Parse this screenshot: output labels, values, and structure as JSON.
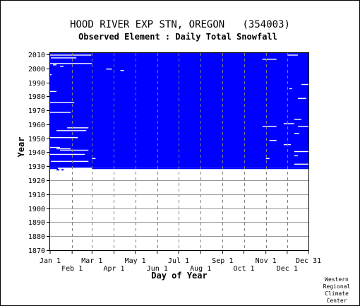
{
  "chart_data": {
    "type": "heatmap",
    "title": "HOOD RIVER EXP STN, OREGON   (354003)",
    "subtitle": "Observed Element : Daily Total Snowfall",
    "xlabel": "Day of Year",
    "ylabel": "Year",
    "footer": [
      "Western",
      "Regional",
      "Climate",
      "Center"
    ],
    "x_ticks_top": [
      "Jan 1",
      "Mar 1",
      "May 1",
      "Jul 1",
      "Sep 1",
      "Nov 1",
      "Dec 31"
    ],
    "x_ticks_bottom": [
      "Feb 1",
      "Apr 1",
      "Jun 1",
      "Aug 1",
      "Oct 1",
      "Dec 1"
    ],
    "x_tick_days_top": [
      1,
      60,
      121,
      182,
      244,
      305,
      365
    ],
    "x_tick_days_bottom": [
      32,
      91,
      152,
      213,
      274,
      335
    ],
    "y_ticks": [
      1870,
      1880,
      1890,
      1900,
      1910,
      1920,
      1930,
      1940,
      1950,
      1960,
      1970,
      1980,
      1990,
      2000,
      2010
    ],
    "xlim": [
      1,
      365
    ],
    "ylim": [
      1870,
      2010
    ],
    "grid": true,
    "colors": {
      "data": "#0000ff",
      "missing": "#ffffff",
      "frame": "#000000",
      "grid": "#999999",
      "background": "#ffffff"
    },
    "record_start": {
      "year": 1928,
      "day": 60
    },
    "record_end_year": 2011,
    "partial_rows": [
      {
        "year": 1928,
        "from_day": 1,
        "to_day": 12
      },
      {
        "year": 1927,
        "from_day": 10,
        "to_day": 14
      },
      {
        "year": 1927,
        "from_day": 17,
        "to_day": 20
      }
    ],
    "gaps": [
      {
        "year": 2009,
        "from_day": 1,
        "to_day": 59
      },
      {
        "year": 2009,
        "from_day": 335,
        "to_day": 350
      },
      {
        "year": 2007,
        "from_day": 2,
        "to_day": 38
      },
      {
        "year": 2006,
        "from_day": 300,
        "to_day": 320
      },
      {
        "year": 2003,
        "from_day": 1,
        "to_day": 60
      },
      {
        "year": 2002,
        "from_day": 5,
        "to_day": 10
      },
      {
        "year": 2001,
        "from_day": 15,
        "to_day": 20
      },
      {
        "year": 1999,
        "from_day": 80,
        "to_day": 88
      },
      {
        "year": 1998,
        "from_day": 100,
        "to_day": 105
      },
      {
        "year": 1995,
        "from_day": 1,
        "to_day": 3
      },
      {
        "year": 1988,
        "from_day": 355,
        "to_day": 365
      },
      {
        "year": 1985,
        "from_day": 338,
        "to_day": 342
      },
      {
        "year": 1983,
        "from_day": 1,
        "to_day": 10
      },
      {
        "year": 1978,
        "from_day": 350,
        "to_day": 362
      },
      {
        "year": 1975,
        "from_day": 1,
        "to_day": 35
      },
      {
        "year": 1968,
        "from_day": 1,
        "to_day": 30
      },
      {
        "year": 1963,
        "from_day": 345,
        "to_day": 355
      },
      {
        "year": 1960,
        "from_day": 330,
        "to_day": 345
      },
      {
        "year": 1958,
        "from_day": 300,
        "to_day": 320
      },
      {
        "year": 1958,
        "from_day": 350,
        "to_day": 365
      },
      {
        "year": 1957,
        "from_day": 25,
        "to_day": 55
      },
      {
        "year": 1955,
        "from_day": 10,
        "to_day": 52
      },
      {
        "year": 1953,
        "from_day": 345,
        "to_day": 352
      },
      {
        "year": 1950,
        "from_day": 1,
        "to_day": 40
      },
      {
        "year": 1948,
        "from_day": 310,
        "to_day": 320
      },
      {
        "year": 1945,
        "from_day": 330,
        "to_day": 340
      },
      {
        "year": 1943,
        "from_day": 1,
        "to_day": 15
      },
      {
        "year": 1942,
        "from_day": 10,
        "to_day": 30
      },
      {
        "year": 1941,
        "from_day": 15,
        "to_day": 55
      },
      {
        "year": 1940,
        "from_day": 345,
        "to_day": 365
      },
      {
        "year": 1938,
        "from_day": 1,
        "to_day": 50
      },
      {
        "year": 1937,
        "from_day": 345,
        "to_day": 350
      },
      {
        "year": 1935,
        "from_day": 60,
        "to_day": 65
      },
      {
        "year": 1935,
        "from_day": 305,
        "to_day": 310
      },
      {
        "year": 1933,
        "from_day": 2,
        "to_day": 55
      },
      {
        "year": 1931,
        "from_day": 345,
        "to_day": 365
      }
    ]
  }
}
